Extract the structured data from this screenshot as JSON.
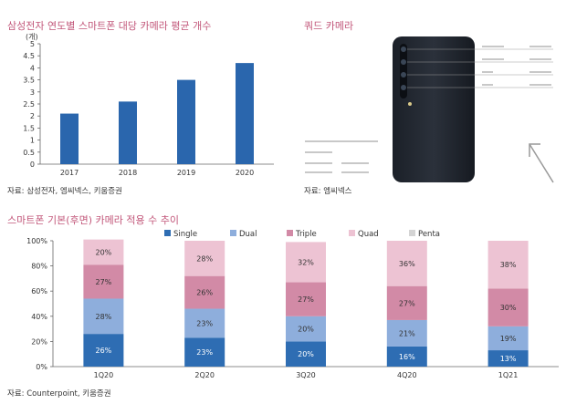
{
  "top_left": {
    "title": "삼성전자 연도별 스마트폰 대당 카메라 평균 개수",
    "source": "자료: 삼성전자, 엠씨넥스, 키움증권"
  },
  "top_right": {
    "title": "쿼드 카메라",
    "source": "자료: 엠씨넥스"
  },
  "bottom": {
    "title": "스마트폰 기본(후면) 카메라 적용 수 추이",
    "source": "자료: Counterpoint, 키움증권"
  },
  "colors": {
    "accent_title": "#c2577a",
    "bar_blue": "#2a66ad",
    "single": "#2e6db3",
    "dual": "#8eaedc",
    "triple": "#d28aa6",
    "quad": "#edc3d3",
    "penta": "#d4d4d4"
  },
  "chart_data": [
    {
      "type": "bar",
      "title": "삼성전자 연도별 스마트폰 대당 카메라 평균 개수",
      "unit_label": "(개)",
      "categories": [
        "2017",
        "2018",
        "2019",
        "2020"
      ],
      "values": [
        2.1,
        2.6,
        3.5,
        4.2
      ],
      "ylim": [
        0,
        5
      ],
      "yticks": [
        "0",
        "0.5",
        "1",
        "1.5",
        "2",
        "2.5",
        "3",
        "3.5",
        "4",
        "4.5",
        "5"
      ],
      "grid": false
    },
    {
      "type": "bar",
      "stacked": true,
      "title": "스마트폰 기본(후면) 카메라 적용 수 추이",
      "categories": [
        "1Q20",
        "2Q20",
        "3Q20",
        "4Q20",
        "1Q21"
      ],
      "ylim": [
        0,
        100
      ],
      "yticks": [
        "0%",
        "20%",
        "40%",
        "60%",
        "80%",
        "100%"
      ],
      "legend_position": "top-right",
      "series": [
        {
          "name": "Single",
          "values": [
            26,
            23,
            20,
            16,
            13
          ],
          "labels": [
            "26%",
            "23%",
            "20%",
            "16%",
            "13%"
          ]
        },
        {
          "name": "Dual",
          "values": [
            28,
            23,
            20,
            21,
            19
          ],
          "labels": [
            "28%",
            "23%",
            "20%",
            "21%",
            "19%"
          ]
        },
        {
          "name": "Triple",
          "values": [
            27,
            26,
            27,
            27,
            30
          ],
          "labels": [
            "27%",
            "26%",
            "27%",
            "27%",
            "30%"
          ]
        },
        {
          "name": "Quad",
          "values": [
            20,
            28,
            32,
            36,
            38
          ],
          "labels": [
            "20%",
            "28%",
            "32%",
            "36%",
            "38%"
          ]
        },
        {
          "name": "Penta",
          "values": [
            0,
            0,
            0,
            0,
            0
          ],
          "labels": [
            "",
            "",
            "",
            "",
            ""
          ]
        }
      ]
    }
  ]
}
